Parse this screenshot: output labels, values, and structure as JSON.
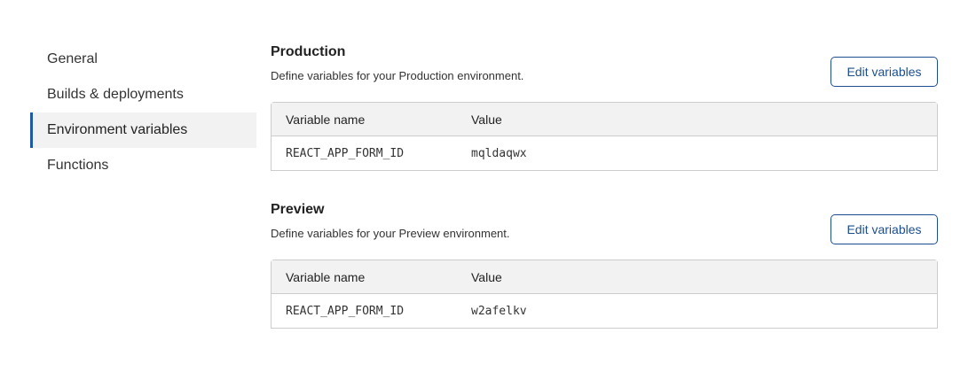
{
  "sidebar": {
    "items": [
      {
        "label": "General",
        "active": false
      },
      {
        "label": "Builds & deployments",
        "active": false
      },
      {
        "label": "Environment variables",
        "active": true
      },
      {
        "label": "Functions",
        "active": false
      }
    ]
  },
  "sections": [
    {
      "title": "Production",
      "description": "Define variables for your Production environment.",
      "button": "Edit variables",
      "columns": [
        "Variable name",
        "Value"
      ],
      "rows": [
        {
          "name": "REACT_APP_FORM_ID",
          "value": "mqldaqwx"
        }
      ]
    },
    {
      "title": "Preview",
      "description": "Define variables for your Preview environment.",
      "button": "Edit variables",
      "columns": [
        "Variable name",
        "Value"
      ],
      "rows": [
        {
          "name": "REACT_APP_FORM_ID",
          "value": "w2afelkv"
        }
      ]
    }
  ],
  "colors": {
    "accent": "#1c4f8f",
    "active_bg": "#f2f2f2"
  }
}
